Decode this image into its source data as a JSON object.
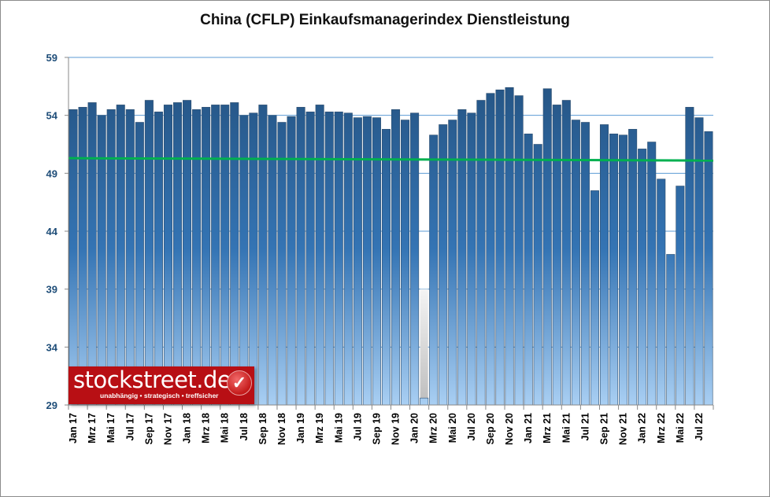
{
  "chart_data": {
    "type": "bar",
    "title": "China (CFLP) Einkaufsmanagerindex Dienstleistung",
    "xlabel": "",
    "ylabel": "",
    "ylim": [
      29,
      59
    ],
    "yticks": [
      29,
      34,
      39,
      44,
      49,
      54,
      59
    ],
    "grid": true,
    "x_tick_labels": [
      "Jan 17",
      "Mrz 17",
      "Mai 17",
      "Jul 17",
      "Sep 17",
      "Nov 17",
      "Jan 18",
      "Mrz 18",
      "Mai 18",
      "Jul 18",
      "Sep 18",
      "Nov 18",
      "Jan 19",
      "Mrz 19",
      "Mai 19",
      "Jul 19",
      "Sep 19",
      "Nov 19",
      "Jan 20",
      "Mrz 20",
      "Mai 20",
      "Jul 20",
      "Sep 20",
      "Nov 20",
      "Jan 21",
      "Mrz 21",
      "Mai 21",
      "Jul 21",
      "Sep 21",
      "Nov 21",
      "Jan 22",
      "Mrz 22",
      "Mai 22",
      "Jul 22"
    ],
    "months_per_label": 2,
    "values": [
      54.5,
      54.7,
      55.1,
      54.0,
      54.5,
      54.9,
      54.5,
      53.4,
      55.3,
      54.3,
      54.9,
      55.1,
      55.3,
      54.5,
      54.7,
      54.9,
      54.9,
      55.1,
      54.0,
      54.2,
      54.9,
      54.0,
      53.4,
      53.9,
      54.7,
      54.3,
      54.9,
      54.3,
      54.3,
      54.2,
      53.8,
      53.9,
      53.8,
      52.8,
      54.5,
      53.6,
      54.2,
      29.6,
      52.3,
      53.2,
      53.6,
      54.5,
      54.2,
      55.3,
      55.9,
      56.2,
      56.4,
      55.7,
      52.4,
      51.5,
      56.3,
      54.9,
      55.3,
      53.6,
      53.4,
      47.5,
      53.2,
      52.4,
      52.3,
      52.8,
      51.1,
      51.7,
      48.5,
      42.0,
      47.9,
      54.7,
      53.8,
      52.6
    ],
    "trendline": {
      "start": 50.3,
      "end": 50.1,
      "color": "#00b050"
    },
    "highlight_index": 37,
    "colors": {
      "bar_top": "#23507d",
      "bar_bottom": "#a9cff3",
      "axis_label": "#1f4e79",
      "grid": "#5b9bd5"
    }
  },
  "logo": {
    "name": "stockstreet.de",
    "slogan": "unabhängig • strategisch • treffsicher",
    "check": "✓"
  }
}
